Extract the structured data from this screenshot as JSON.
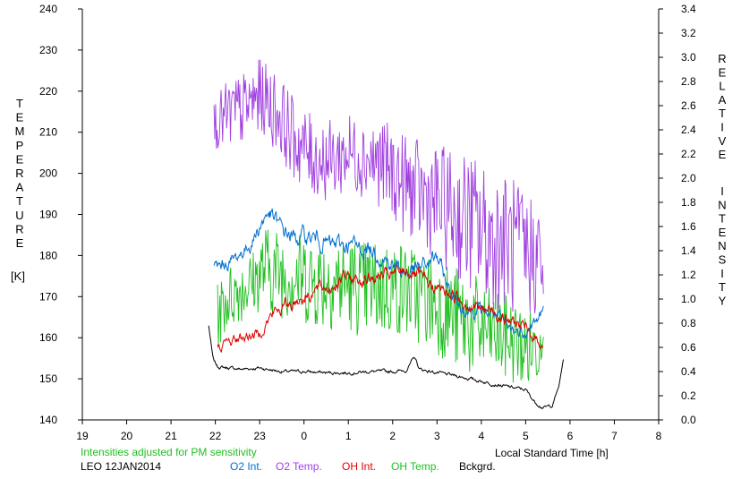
{
  "chart_data": {
    "type": "line",
    "left_axis": {
      "label_letters": [
        "T",
        "E",
        "M",
        "P",
        "E",
        "R",
        "A",
        "T",
        "U",
        "R",
        "E"
      ],
      "unit": "[K]",
      "ticks": [
        140,
        150,
        160,
        170,
        180,
        190,
        200,
        210,
        220,
        230,
        240
      ],
      "range": [
        140,
        240
      ]
    },
    "right_axis": {
      "label_letters_1": [
        "R",
        "E",
        "L",
        "A",
        "T",
        "I",
        "V",
        "E"
      ],
      "label_letters_2": [
        "I",
        "N",
        "T",
        "E",
        "N",
        "S",
        "I",
        "T",
        "Y"
      ],
      "ticks": [
        "0.0",
        "0.2",
        "0.4",
        "0.6",
        "0.8",
        "1.0",
        "1.2",
        "1.4",
        "1.6",
        "1.8",
        "2.0",
        "2.2",
        "2.4",
        "2.6",
        "2.8",
        "3.0",
        "3.2",
        "3.4"
      ],
      "range": [
        0,
        3.4
      ]
    },
    "x_axis": {
      "label": "Local Standard Time [h]",
      "ticks": [
        "19",
        "20",
        "21",
        "22",
        "23",
        "0",
        "1",
        "2",
        "3",
        "4",
        "5",
        "6",
        "7",
        "8"
      ],
      "range_hours": [
        19,
        32
      ]
    },
    "note": "Intensities adjusted for PM sensitivity",
    "station": "LEO 12JAN2014",
    "legend": [
      {
        "name": "O2 Int.",
        "color": "#0070d0"
      },
      {
        "name": "O2 Temp.",
        "color": "#a040e0"
      },
      {
        "name": "OH Int.",
        "color": "#e00000"
      },
      {
        "name": "OH Temp.",
        "color": "#20c020"
      },
      {
        "name": "Bckgrd.",
        "color": "#000000"
      }
    ],
    "grid": false,
    "series": [
      {
        "name": "O2 Temp.",
        "axis": "left",
        "color": "#a040e0",
        "style": "noisy",
        "x": [
          21.97,
          22.3,
          22.7,
          23.0,
          23.4,
          23.8,
          24.2,
          24.6,
          25.0,
          25.4,
          25.8,
          26.2,
          26.6,
          27.0,
          27.4,
          27.8,
          28.2,
          28.6,
          29.0,
          29.3,
          29.4
        ],
        "y": [
          212,
          214,
          216,
          219,
          215,
          208,
          204,
          203,
          205,
          204,
          202,
          198,
          195,
          193,
          190,
          188,
          184,
          183,
          180,
          180,
          175
        ],
        "amp": [
          6,
          9,
          9,
          9,
          10,
          10,
          10,
          10,
          10,
          10,
          11,
          12,
          13,
          14,
          16,
          17,
          17,
          17,
          17,
          14,
          8
        ]
      },
      {
        "name": "O2 Int.",
        "axis": "right",
        "color": "#0070d0",
        "style": "smooth",
        "x": [
          21.97,
          22.2,
          22.5,
          22.8,
          23.0,
          23.2,
          23.5,
          23.8,
          24.0,
          24.3,
          24.6,
          25.0,
          25.3,
          25.6,
          26.0,
          26.3,
          26.6,
          27.0,
          27.3,
          27.6,
          28.0,
          28.3,
          28.6,
          28.9,
          29.2,
          29.4
        ],
        "y": [
          1.25,
          1.28,
          1.35,
          1.45,
          1.6,
          1.72,
          1.58,
          1.5,
          1.52,
          1.5,
          1.45,
          1.45,
          1.42,
          1.4,
          1.28,
          1.22,
          1.25,
          1.35,
          1.05,
          0.92,
          0.9,
          0.88,
          0.75,
          0.72,
          0.8,
          0.9
        ],
        "amp": [
          0.04,
          0.04,
          0.04,
          0.04,
          0.05,
          0.05,
          0.05,
          0.05,
          0.05,
          0.05,
          0.05,
          0.05,
          0.05,
          0.05,
          0.05,
          0.05,
          0.05,
          0.05,
          0.04,
          0.04,
          0.04,
          0.04,
          0.04,
          0.04,
          0.04,
          0.04
        ]
      },
      {
        "name": "OH Int.",
        "axis": "right",
        "color": "#e00000",
        "style": "smooth",
        "x": [
          22.05,
          22.4,
          22.8,
          23.0,
          23.3,
          23.6,
          24.0,
          24.3,
          24.6,
          24.9,
          25.3,
          25.6,
          26.0,
          26.3,
          26.6,
          26.9,
          27.3,
          27.6,
          28.0,
          28.3,
          28.6,
          28.9,
          29.2,
          29.4
        ],
        "y": [
          0.6,
          0.66,
          0.7,
          0.72,
          0.88,
          0.95,
          1.02,
          1.08,
          1.1,
          1.18,
          1.16,
          1.18,
          1.2,
          1.24,
          1.18,
          1.1,
          1.05,
          0.98,
          0.92,
          0.9,
          0.82,
          0.78,
          0.68,
          0.62
        ],
        "amp": [
          0.03,
          0.03,
          0.03,
          0.03,
          0.04,
          0.04,
          0.04,
          0.04,
          0.04,
          0.04,
          0.04,
          0.04,
          0.04,
          0.04,
          0.04,
          0.04,
          0.04,
          0.04,
          0.04,
          0.04,
          0.04,
          0.04,
          0.03,
          0.03
        ]
      },
      {
        "name": "OH Temp.",
        "axis": "left",
        "color": "#20c020",
        "style": "noisy",
        "x": [
          22.05,
          22.3,
          22.6,
          22.9,
          23.1,
          23.4,
          23.8,
          24.2,
          24.6,
          25.0,
          25.4,
          25.8,
          26.2,
          26.6,
          27.0,
          27.4,
          27.8,
          28.2,
          28.6,
          29.0,
          29.3,
          29.4
        ],
        "y": [
          165,
          170,
          172,
          174,
          177,
          176,
          175,
          174,
          174,
          173,
          172,
          172,
          172,
          170,
          168,
          165,
          163,
          161,
          160,
          157,
          158,
          163
        ],
        "amp": [
          8,
          8,
          8,
          8,
          11,
          11,
          11,
          12,
          12,
          12,
          12,
          12,
          12,
          12,
          12,
          13,
          13,
          11,
          11,
          10,
          9,
          4
        ]
      },
      {
        "name": "Bckgrd.",
        "axis": "right",
        "color": "#000000",
        "style": "smooth",
        "x": [
          21.85,
          21.95,
          22.05,
          22.3,
          22.6,
          23.0,
          23.5,
          24.0,
          24.5,
          25.0,
          25.5,
          26.0,
          26.3,
          26.5,
          26.6,
          27.0,
          27.5,
          28.0,
          28.5,
          29.0,
          29.2,
          29.4,
          29.6,
          29.75,
          29.85
        ],
        "y": [
          0.78,
          0.5,
          0.44,
          0.43,
          0.42,
          0.43,
          0.4,
          0.4,
          0.39,
          0.39,
          0.4,
          0.4,
          0.41,
          0.52,
          0.42,
          0.39,
          0.36,
          0.32,
          0.28,
          0.25,
          0.15,
          0.1,
          0.12,
          0.28,
          0.5
        ],
        "amp": [
          0,
          0.01,
          0.01,
          0.01,
          0.01,
          0.01,
          0.01,
          0.01,
          0.01,
          0.01,
          0.01,
          0.01,
          0.01,
          0.01,
          0.01,
          0.01,
          0.01,
          0.01,
          0.01,
          0.01,
          0.01,
          0.01,
          0.01,
          0,
          0
        ]
      }
    ]
  }
}
